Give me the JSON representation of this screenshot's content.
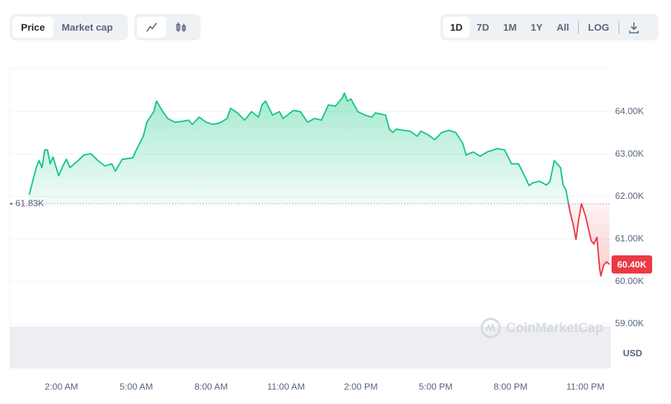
{
  "toolbar": {
    "price_tabs": [
      "Price",
      "Market cap"
    ],
    "ranges": [
      "1D",
      "7D",
      "1M",
      "1Y",
      "All"
    ],
    "log": "LOG"
  },
  "chart_data": {
    "type": "line",
    "x": [
      0.71,
      0.99,
      1.1,
      1.22,
      1.33,
      1.44,
      1.55,
      1.66,
      1.89,
      2.06,
      2.2,
      2.34,
      2.62,
      2.9,
      3.18,
      3.46,
      3.74,
      4.02,
      4.16,
      4.44,
      4.86,
      5.0,
      5.28,
      5.42,
      5.7,
      5.81,
      6.03,
      6.26,
      6.54,
      6.82,
      7.1,
      7.24,
      7.52,
      7.8,
      8.08,
      8.36,
      8.64,
      8.78,
      9.06,
      9.34,
      9.62,
      9.9,
      10.04,
      10.18,
      10.46,
      10.74,
      10.88,
      11.3,
      11.58,
      11.86,
      12.14,
      12.42,
      12.7,
      12.98,
      13.26,
      13.34,
      13.46,
      13.6,
      13.88,
      14.16,
      14.44,
      14.58,
      14.99,
      15.14,
      15.28,
      15.42,
      15.7,
      15.98,
      16.26,
      16.4,
      16.68,
      16.96,
      17.24,
      17.52,
      17.8,
      18.08,
      18.22,
      18.5,
      18.78,
      19.06,
      19.48,
      19.76,
      20.04,
      20.32,
      20.6,
      20.74,
      20.88,
      21.16,
      21.44,
      21.58,
      21.75,
      22.0,
      22.11,
      22.22,
      22.31,
      22.39,
      22.5,
      22.62,
      22.73,
      22.84,
      23.01,
      23.23,
      23.34,
      23.46,
      23.57,
      23.62,
      23.73,
      23.85,
      23.96
    ],
    "values": [
      62.04,
      62.68,
      62.85,
      62.68,
      63.1,
      63.1,
      62.77,
      62.93,
      62.49,
      62.72,
      62.88,
      62.68,
      62.82,
      62.98,
      63.01,
      62.85,
      62.72,
      62.77,
      62.6,
      62.88,
      62.91,
      63.1,
      63.42,
      63.75,
      64.0,
      64.25,
      64.03,
      63.84,
      63.75,
      63.77,
      63.8,
      63.7,
      63.87,
      63.75,
      63.7,
      63.74,
      63.84,
      64.08,
      63.97,
      63.8,
      64.0,
      63.87,
      64.16,
      64.25,
      63.92,
      64.0,
      63.84,
      64.03,
      64.0,
      63.75,
      63.84,
      63.8,
      64.16,
      64.13,
      64.33,
      64.44,
      64.25,
      64.3,
      64.0,
      63.92,
      63.87,
      63.97,
      63.92,
      63.59,
      63.51,
      63.59,
      63.56,
      63.54,
      63.42,
      63.54,
      63.46,
      63.34,
      63.51,
      63.56,
      63.51,
      63.26,
      62.98,
      63.05,
      62.95,
      63.05,
      63.13,
      63.1,
      62.77,
      62.77,
      62.44,
      62.26,
      62.32,
      62.36,
      62.27,
      62.36,
      62.85,
      62.68,
      62.27,
      62.16,
      61.86,
      61.62,
      61.37,
      60.99,
      61.45,
      61.83,
      61.53,
      60.96,
      60.88,
      61.04,
      60.3,
      60.13,
      60.38,
      60.46,
      60.4
    ],
    "up_color": "#16c784",
    "down_color": "#ea3943",
    "baseline": {
      "value": 61.83,
      "label": "61.83K"
    },
    "current": {
      "value": 60.4,
      "label": "60.40K"
    },
    "xlim": [
      -0.07,
      24.02
    ],
    "xticks": [
      {
        "value": 2,
        "label": "2:00 AM"
      },
      {
        "value": 5,
        "label": "5:00 AM"
      },
      {
        "value": 8,
        "label": "8:00 AM"
      },
      {
        "value": 11,
        "label": "11:00 AM"
      },
      {
        "value": 14,
        "label": "2:00 PM"
      },
      {
        "value": 17,
        "label": "5:00 PM"
      },
      {
        "value": 20,
        "label": "8:00 PM"
      },
      {
        "value": 23,
        "label": "11:00 PM"
      }
    ],
    "ylim": [
      57.95,
      65.02
    ],
    "yticks": [
      {
        "value": 59,
        "label": "59.00K"
      },
      {
        "value": 60,
        "label": "60.00K"
      },
      {
        "value": 61,
        "label": "61.00K"
      },
      {
        "value": 62,
        "label": "62.00K"
      },
      {
        "value": 63,
        "label": "63.00K"
      },
      {
        "value": 64,
        "label": "64.00K"
      }
    ],
    "y_label": "USD",
    "watermark": "CoinMarketCap",
    "grid": true
  }
}
